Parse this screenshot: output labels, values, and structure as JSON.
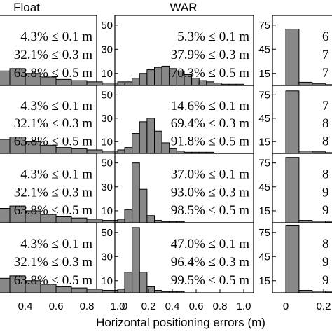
{
  "chart_data": {
    "type": "bar",
    "xlabel": "Horizontal positioning errors (m)",
    "columns": [
      {
        "title": "Float",
        "xticks": [
          "0.4",
          "0.6",
          "0.8",
          "1.0"
        ],
        "xtick_values": [
          0.4,
          0.6,
          0.8,
          1.0
        ],
        "ylim": [
          0,
          58
        ],
        "yticks": [],
        "rows": [
          {
            "values": [
              12,
              14,
              10,
              7,
              5,
              4,
              3,
              2,
              3
            ],
            "stats": [
              "4.3% ≤ 0.1 m",
              "32.1% ≤ 0.3 m",
              "63.8% ≤ 0.5 m"
            ]
          },
          {
            "values": [
              12,
              14,
              10,
              7,
              5,
              4,
              3,
              2,
              3
            ],
            "stats": [
              "4.3% ≤ 0.1 m",
              "32.1% ≤ 0.3 m",
              "63.8% ≤ 0.5 m"
            ]
          },
          {
            "values": [
              12,
              14,
              10,
              7,
              5,
              4,
              3,
              2,
              3
            ],
            "stats": [
              "4.3% ≤ 0.1 m",
              "32.1% ≤ 0.3 m",
              "63.8% ≤ 0.5 m"
            ]
          },
          {
            "values": [
              12,
              14,
              10,
              7,
              5,
              4,
              3,
              2,
              3
            ],
            "stats": [
              "4.3% ≤ 0.1 m",
              "32.1% ≤ 0.3 m",
              "63.8% ≤ 0.5 m"
            ]
          }
        ]
      },
      {
        "title": "WAR",
        "xticks": [
          "0",
          "0.2",
          "0.4",
          "0.6",
          "0.8",
          "1.0"
        ],
        "xtick_values": [
          0,
          0.2,
          0.4,
          0.6,
          0.8,
          1.0
        ],
        "ylim": [
          0,
          58
        ],
        "yticks": [
          10,
          30,
          50
        ],
        "rows": [
          {
            "values": [
              2,
              6,
              10,
              13,
              15,
              16,
              14,
              12,
              9,
              6,
              4,
              3,
              2,
              1,
              1,
              1
            ],
            "stats": [
              "5.3% ≤ 0.1 m",
              "37.9% ≤ 0.3 m",
              "70.3% ≤ 0.5 m"
            ]
          },
          {
            "values": [
              5,
              17,
              27,
              30,
              19,
              9,
              4,
              2,
              1,
              1,
              1,
              1,
              0,
              0,
              0,
              0
            ],
            "stats": [
              "14.6% ≤ 0.1 m",
              "69.4% ≤ 0.3 m",
              "91.8% ≤ 0.5 m"
            ]
          },
          {
            "values": [
              11,
              50,
              28,
              6,
              2,
              1,
              1,
              1,
              0,
              0,
              0,
              0,
              0,
              0,
              0,
              0
            ],
            "stats": [
              "37.0% ≤ 0.1 m",
              "93.0% ≤ 0.3 m",
              "98.5% ≤ 0.5 m"
            ]
          },
          {
            "values": [
              17,
              54,
              17,
              5,
              2,
              1,
              1,
              1,
              0,
              0,
              0,
              0,
              0,
              0,
              0,
              0
            ],
            "stats": [
              "47.0% ≤ 0.1 m",
              "96.4% ≤ 0.3 m",
              "99.5% ≤ 0.5 m"
            ]
          }
        ]
      },
      {
        "title": "",
        "xticks": [
          "0",
          "0.2"
        ],
        "xtick_values": [
          0,
          0.2
        ],
        "ylim": [
          0,
          87
        ],
        "yticks": [
          15,
          45,
          75
        ],
        "rows": [
          {
            "values": [
              70,
              4,
              2,
              1,
              1
            ],
            "stats": [
              "6",
              "7",
              "7"
            ]
          },
          {
            "values": [
              80,
              3,
              2,
              1,
              1
            ],
            "stats": [
              "7",
              "8",
              "8"
            ]
          },
          {
            "values": [
              82,
              3,
              2,
              1,
              1
            ],
            "stats": [
              "8",
              "9",
              "9"
            ]
          },
          {
            "values": [
              84,
              3,
              2,
              1,
              1
            ],
            "stats": [
              "8",
              "9",
              "9"
            ]
          }
        ]
      }
    ]
  }
}
